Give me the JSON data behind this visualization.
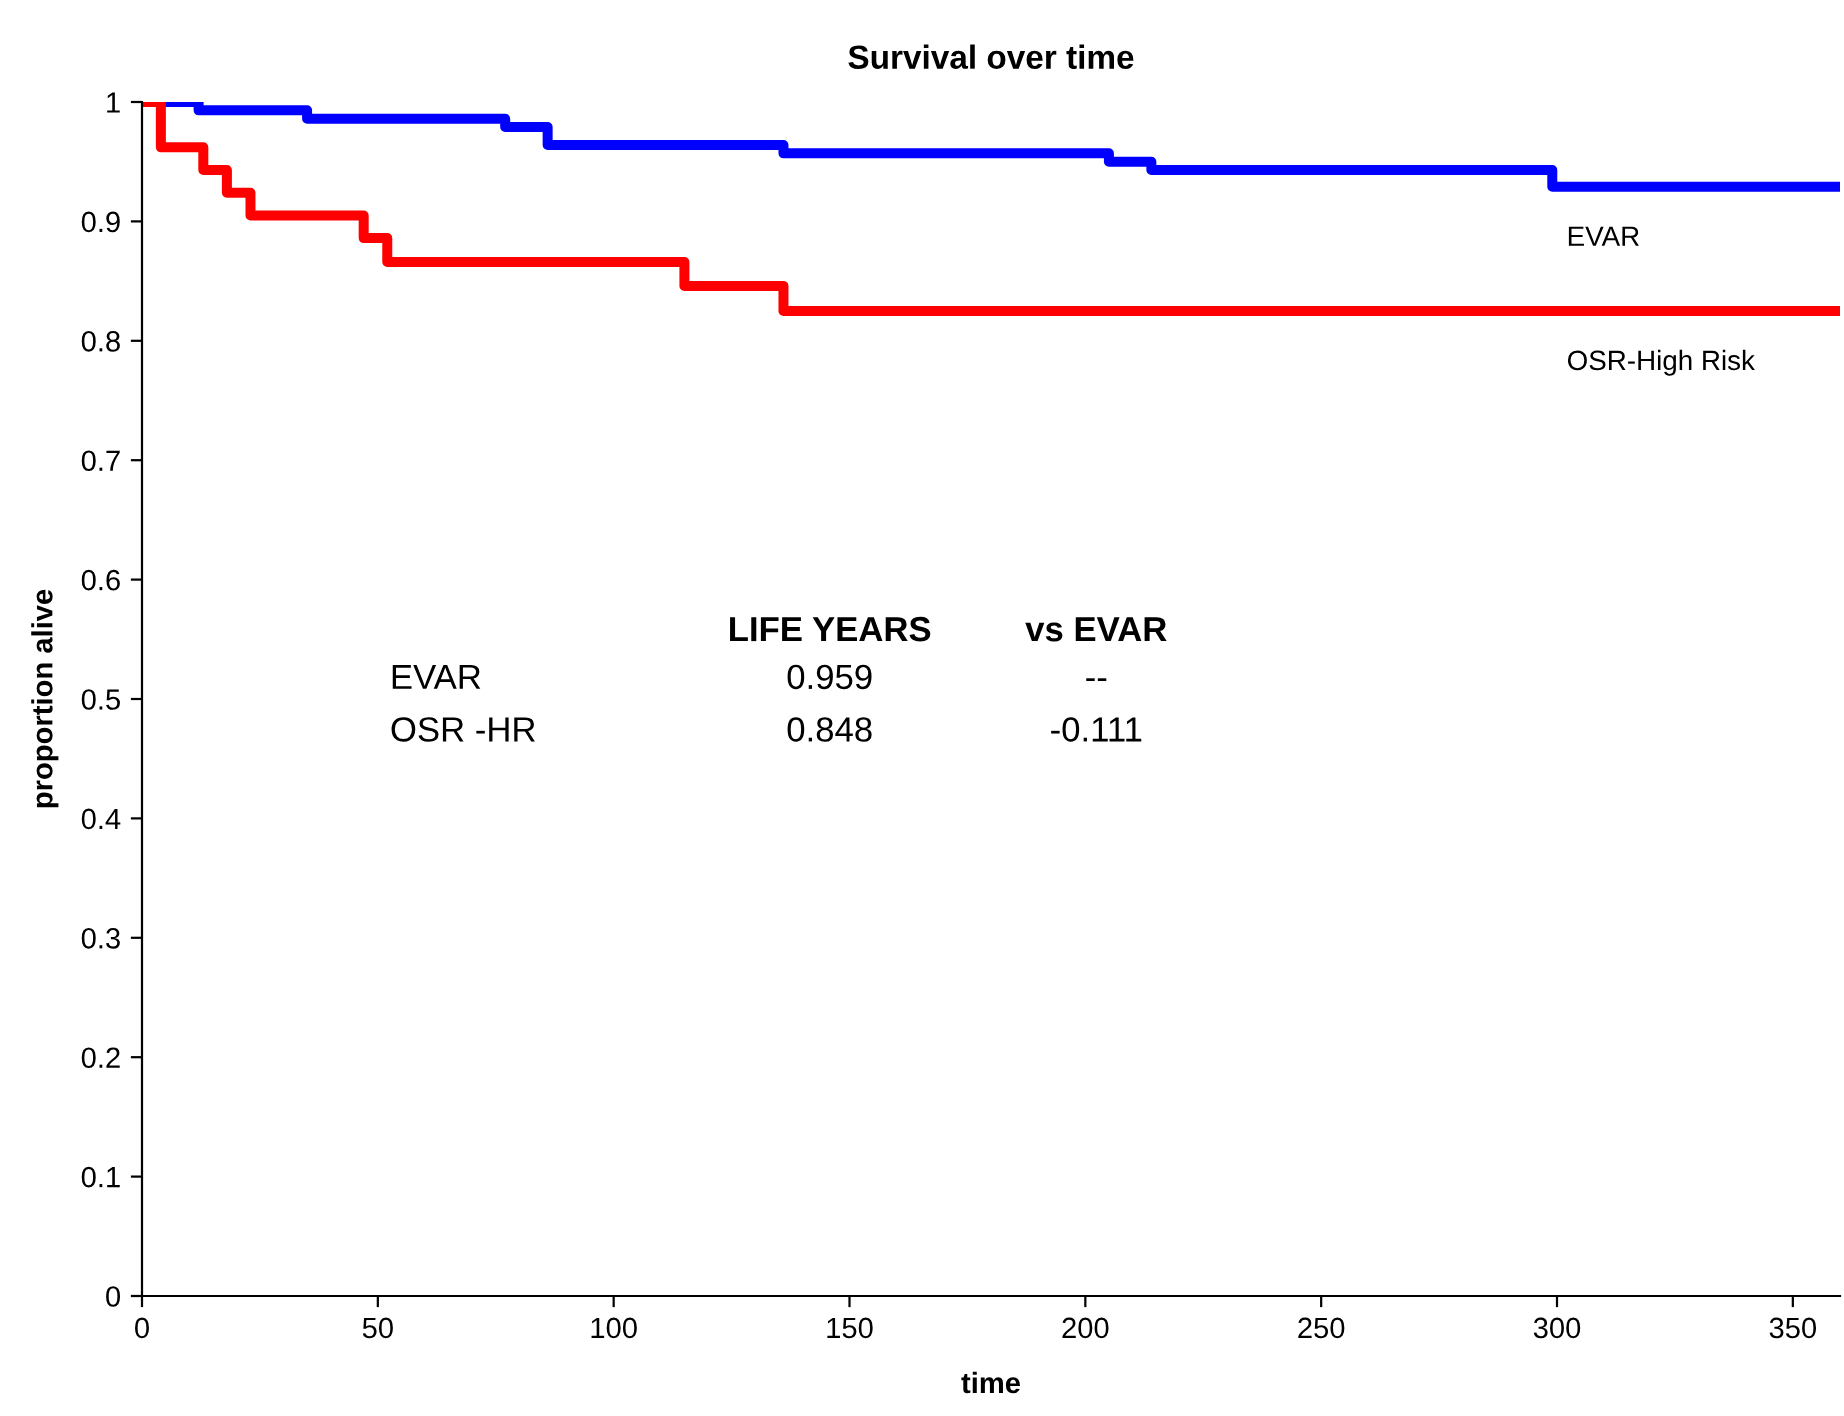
{
  "chart_data": {
    "type": "step",
    "title": "Survival over time",
    "xlabel": "time",
    "ylabel": "proportion alive",
    "xlim": [
      0,
      360
    ],
    "xticks": [
      0,
      50,
      100,
      150,
      200,
      250,
      300,
      350
    ],
    "ylim": [
      0,
      1
    ],
    "yticks": [
      0,
      0.1,
      0.2,
      0.3,
      0.4,
      0.5,
      0.6,
      0.7,
      0.8,
      0.9,
      1
    ],
    "grid": false,
    "legend": false,
    "marker": "none",
    "line_style": "solid",
    "series": [
      {
        "name": "EVAR",
        "color": "#0000ff",
        "x": [
          0,
          12,
          35,
          77,
          86,
          136,
          205,
          214,
          299,
          360
        ],
        "values": [
          1,
          0.993,
          0.986,
          0.979,
          0.964,
          0.957,
          0.95,
          0.943,
          0.929,
          0.929
        ]
      },
      {
        "name": "OSR-High Risk",
        "color": "#ff0000",
        "x": [
          0,
          4,
          13,
          18,
          23,
          47,
          52,
          115,
          136,
          360
        ],
        "values": [
          1,
          0.962,
          0.943,
          0.924,
          0.905,
          0.886,
          0.866,
          0.846,
          0.825,
          0.825
        ]
      }
    ],
    "annotations": [
      "LIFE YEARS",
      "vs EVAR",
      "EVAR",
      "0.959",
      "--",
      "OSR -HR",
      "0.848",
      "-0.111"
    ]
  }
}
